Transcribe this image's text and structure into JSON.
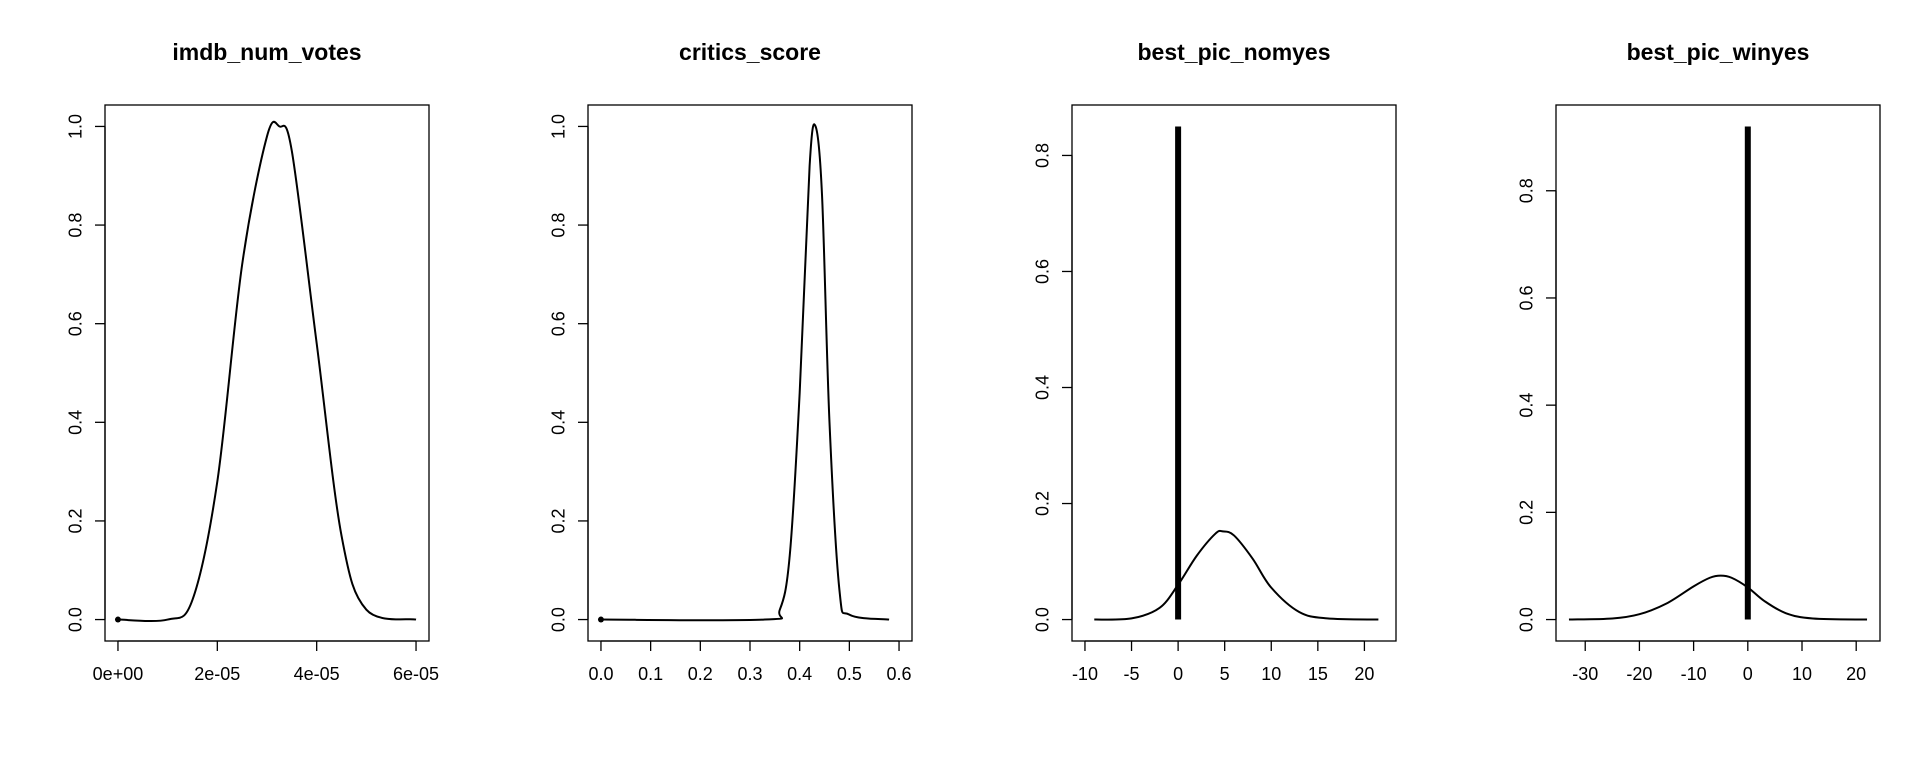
{
  "chart_data": [
    {
      "type": "line",
      "title": "imdb_num_votes",
      "xlabel": "",
      "ylabel": "",
      "xlim": [
        0,
        6e-05
      ],
      "ylim": [
        0,
        1.0
      ],
      "x_ticks": [
        0,
        2e-05,
        4e-05,
        6e-05
      ],
      "x_tick_labels": [
        "0e+00",
        "2e-05",
        "4e-05",
        "6e-05"
      ],
      "y_ticks": [
        0,
        0.2,
        0.4,
        0.6,
        0.8,
        1.0
      ],
      "y_tick_labels": [
        "0.0",
        "0.2",
        "0.4",
        "0.6",
        "0.8",
        "1.0"
      ],
      "series": [
        {
          "kind": "density",
          "x": [
            0,
            1e-05,
            1.5e-05,
            2e-05,
            2.5e-05,
            3e-05,
            3.25e-05,
            3.5e-05,
            4e-05,
            4.5e-05,
            5e-05,
            6e-05
          ],
          "y": [
            0,
            0.0,
            0.04,
            0.28,
            0.72,
            0.98,
            1.0,
            0.95,
            0.56,
            0.17,
            0.02,
            0
          ]
        },
        {
          "kind": "spike",
          "x": 0,
          "y": 0
        }
      ]
    },
    {
      "type": "line",
      "title": "critics_score",
      "xlabel": "",
      "ylabel": "",
      "xlim": [
        0,
        0.6
      ],
      "ylim": [
        0,
        1.0
      ],
      "x_ticks": [
        0,
        0.1,
        0.2,
        0.3,
        0.4,
        0.5,
        0.6
      ],
      "x_tick_labels": [
        "0.0",
        "0.1",
        "0.2",
        "0.3",
        "0.4",
        "0.5",
        "0.6"
      ],
      "y_ticks": [
        0,
        0.2,
        0.4,
        0.6,
        0.8,
        1.0
      ],
      "y_tick_labels": [
        "0.0",
        "0.2",
        "0.4",
        "0.6",
        "0.8",
        "1.0"
      ],
      "series": [
        {
          "kind": "density",
          "x": [
            0,
            0.33,
            0.36,
            0.38,
            0.4,
            0.42,
            0.432,
            0.445,
            0.46,
            0.48,
            0.5,
            0.58
          ],
          "y": [
            0,
            0,
            0.02,
            0.13,
            0.46,
            0.92,
            1.0,
            0.86,
            0.4,
            0.06,
            0.01,
            0
          ]
        },
        {
          "kind": "spike",
          "x": 0,
          "y": 0
        }
      ]
    },
    {
      "type": "line",
      "title": "best_pic_nomyes",
      "xlabel": "",
      "ylabel": "",
      "xlim": [
        -10,
        22
      ],
      "ylim": [
        0,
        0.85
      ],
      "x_ticks": [
        -10,
        -5,
        0,
        5,
        10,
        15,
        20
      ],
      "x_tick_labels": [
        "-10",
        "-5",
        "0",
        "5",
        "10",
        "15",
        "20"
      ],
      "y_ticks": [
        0,
        0.2,
        0.4,
        0.6,
        0.8
      ],
      "y_tick_labels": [
        "0.0",
        "0.2",
        "0.4",
        "0.6",
        "0.8"
      ],
      "series": [
        {
          "kind": "density",
          "x": [
            -9,
            -5,
            -2,
            0,
            2,
            4,
            4.8,
            6,
            8,
            10,
            13,
            16,
            21.5
          ],
          "y": [
            0,
            0.002,
            0.02,
            0.06,
            0.11,
            0.148,
            0.152,
            0.145,
            0.105,
            0.055,
            0.013,
            0.002,
            0
          ]
        },
        {
          "kind": "spike",
          "x": 0,
          "y": 0.85
        }
      ]
    },
    {
      "type": "line",
      "title": "best_pic_winyes",
      "xlabel": "",
      "ylabel": "",
      "xlim": [
        -33,
        22
      ],
      "ylim": [
        0,
        0.92
      ],
      "x_ticks": [
        -30,
        -20,
        -10,
        0,
        10,
        20
      ],
      "x_tick_labels": [
        "-30",
        "-20",
        "-10",
        "0",
        "10",
        "20"
      ],
      "y_ticks": [
        0,
        0.2,
        0.4,
        0.6,
        0.8
      ],
      "y_tick_labels": [
        "0.0",
        "0.2",
        "0.4",
        "0.6",
        "0.8"
      ],
      "series": [
        {
          "kind": "density",
          "x": [
            -33,
            -25,
            -20,
            -15,
            -10,
            -7,
            -5,
            -3,
            0,
            3,
            7,
            12,
            22
          ],
          "y": [
            0,
            0.002,
            0.01,
            0.03,
            0.062,
            0.078,
            0.082,
            0.078,
            0.06,
            0.035,
            0.012,
            0.002,
            0
          ]
        },
        {
          "kind": "spike",
          "x": 0,
          "y": 0.92
        }
      ]
    }
  ]
}
